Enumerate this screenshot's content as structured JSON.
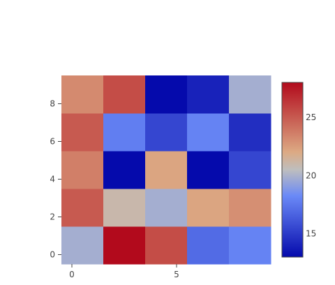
{
  "chart_data": {
    "type": "heatmap",
    "x": [
      0,
      1.5,
      3.5,
      5.5,
      7.5,
      9.5
    ],
    "x_centers": [
      0.5,
      2.5,
      4.5,
      6.5,
      8.5
    ],
    "y_bins": [
      [
        -0.5,
        1.5
      ],
      [
        1.5,
        3.5
      ],
      [
        3.5,
        5.5
      ],
      [
        5.5,
        7.5
      ],
      [
        7.5,
        9.5
      ]
    ],
    "x_bins": [
      [
        -0.5,
        1.5
      ],
      [
        1.5,
        3.5
      ],
      [
        3.5,
        5.5
      ],
      [
        5.5,
        7.5
      ],
      [
        7.5,
        9.5
      ]
    ],
    "z": [
      [
        19.8,
        28.0,
        25.5,
        17.0,
        18.0
      ],
      [
        25.0,
        21.0,
        19.8,
        22.2,
        23.0
      ],
      [
        23.6,
        13.0,
        22.2,
        13.0,
        15.5
      ],
      [
        25.0,
        17.8,
        15.5,
        18.0,
        14.5
      ],
      [
        23.2,
        25.5,
        13.0,
        14.0,
        19.8
      ]
    ],
    "xlim": [
      -0.5,
      9.5
    ],
    "ylim": [
      -0.5,
      9.5
    ],
    "x_ticks": [
      0,
      5
    ],
    "x_tick_labels": [
      "0",
      "5"
    ],
    "y_ticks": [
      0,
      2,
      4,
      6,
      8
    ],
    "y_tick_labels": [
      "0",
      "2",
      "4",
      "6",
      "8"
    ],
    "colorscale": "coolwarm",
    "zmin": 13,
    "zmax": 28,
    "colorbar_ticks": [
      15,
      20,
      25
    ],
    "colorbar_tick_labels": [
      "15",
      "20",
      "25"
    ],
    "title": "",
    "xlabel": "",
    "ylabel": "",
    "grid": false
  }
}
